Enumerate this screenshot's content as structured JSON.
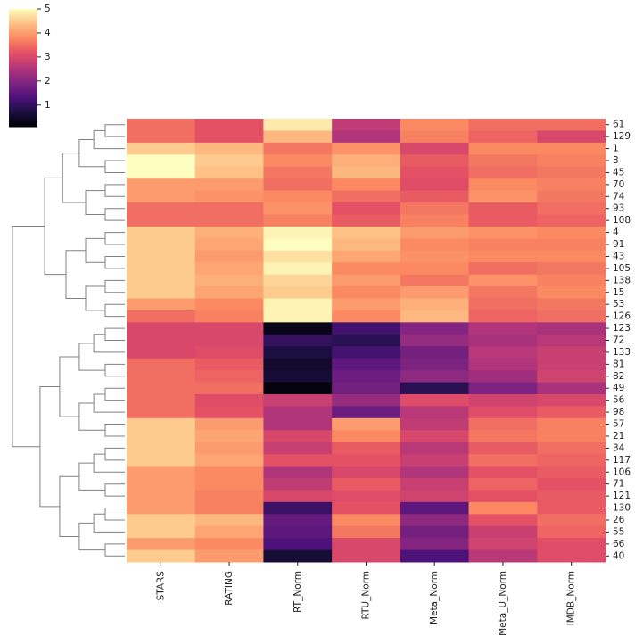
{
  "chart_data": {
    "type": "heatmap",
    "colormap": "magma",
    "columns": [
      "STARS",
      "RATING",
      "RT_Norm",
      "RTU_Norm",
      "Meta_Norm",
      "Meta_U_Norm",
      "IMDB_Norm"
    ],
    "rows": [
      "61",
      "129",
      "1",
      "3",
      "45",
      "70",
      "74",
      "93",
      "108",
      "4",
      "91",
      "43",
      "105",
      "138",
      "15",
      "53",
      "126",
      "123",
      "72",
      "133",
      "81",
      "82",
      "49",
      "56",
      "98",
      "57",
      "21",
      "34",
      "117",
      "106",
      "71",
      "121",
      "130",
      "26",
      "55",
      "66",
      "40"
    ],
    "values": [
      [
        3.5,
        3.2,
        4.8,
        2.7,
        3.8,
        3.5,
        3.5
      ],
      [
        3.5,
        3.2,
        4.3,
        2.5,
        3.7,
        3.4,
        3.0
      ],
      [
        4.5,
        4.3,
        3.6,
        3.9,
        3.0,
        3.8,
        3.8
      ],
      [
        5,
        4.5,
        3.8,
        4.2,
        3.3,
        3.6,
        3.7
      ],
      [
        5,
        4.4,
        3.6,
        4.3,
        3.2,
        3.5,
        3.6
      ],
      [
        4,
        4.0,
        3.5,
        3.8,
        3.1,
        3.8,
        3.7
      ],
      [
        4,
        3.9,
        3.8,
        3.5,
        3.3,
        3.9,
        3.6
      ],
      [
        3.5,
        3.5,
        3.9,
        3.2,
        3.6,
        3.3,
        3.5
      ],
      [
        3.5,
        3.5,
        3.7,
        3.3,
        3.7,
        3.3,
        3.4
      ],
      [
        4.5,
        4.2,
        4.9,
        4.4,
        4.0,
        3.9,
        3.8
      ],
      [
        4.5,
        4.1,
        5.0,
        4.3,
        3.8,
        3.7,
        3.7
      ],
      [
        4.5,
        4.0,
        4.7,
        4.1,
        3.9,
        3.8,
        3.8
      ],
      [
        4.5,
        4.1,
        4.9,
        3.8,
        3.8,
        3.5,
        3.6
      ],
      [
        4.5,
        4.2,
        4.6,
        4.0,
        3.6,
        3.9,
        3.7
      ],
      [
        4.5,
        4.1,
        4.5,
        3.8,
        4.0,
        3.6,
        3.8
      ],
      [
        4,
        3.8,
        4.9,
        4.0,
        4.2,
        3.5,
        3.6
      ],
      [
        3.5,
        3.7,
        4.9,
        3.8,
        4.3,
        3.4,
        3.5
      ],
      [
        3,
        3.0,
        0.3,
        1.2,
        2.0,
        2.5,
        2.4
      ],
      [
        3,
        3.0,
        1.0,
        0.9,
        2.2,
        2.4,
        2.6
      ],
      [
        3,
        3.1,
        0.7,
        1.2,
        1.8,
        2.6,
        2.8
      ],
      [
        3.5,
        3.3,
        0.5,
        1.5,
        1.9,
        2.5,
        2.8
      ],
      [
        3.5,
        3.4,
        0.6,
        1.7,
        2.1,
        2.3,
        2.9
      ],
      [
        3.5,
        3.5,
        0.2,
        1.8,
        0.9,
        1.9,
        2.4
      ],
      [
        3.5,
        3.1,
        2.8,
        2.2,
        3.1,
        2.9,
        3.0
      ],
      [
        3.5,
        3.2,
        2.5,
        1.7,
        2.6,
        3.1,
        3.3
      ],
      [
        4.5,
        4.0,
        2.5,
        4.0,
        2.7,
        3.5,
        3.7
      ],
      [
        4.5,
        4.1,
        3.0,
        3.8,
        3.0,
        3.6,
        3.7
      ],
      [
        4.5,
        4.0,
        2.8,
        3.3,
        2.6,
        3.3,
        3.5
      ],
      [
        4.5,
        4.1,
        3.2,
        3.2,
        2.8,
        3.5,
        3.4
      ],
      [
        4,
        3.8,
        2.5,
        3.0,
        2.5,
        3.2,
        3.3
      ],
      [
        4,
        3.8,
        2.7,
        3.3,
        2.8,
        3.4,
        3.2
      ],
      [
        4,
        3.7,
        3.0,
        3.1,
        2.9,
        3.2,
        3.3
      ],
      [
        4,
        3.7,
        1.1,
        3.2,
        1.5,
        3.8,
        3.3
      ],
      [
        4.5,
        4.3,
        1.6,
        3.8,
        2.1,
        3.2,
        3.5
      ],
      [
        4.5,
        4.1,
        1.5,
        3.6,
        1.8,
        2.8,
        3.4
      ],
      [
        4,
        3.8,
        1.3,
        3.0,
        2.0,
        2.9,
        3.1
      ],
      [
        4.5,
        4.0,
        0.6,
        3.0,
        1.3,
        2.6,
        3.1
      ]
    ],
    "clim": [
      0.1,
      5
    ],
    "colorbar_ticks": [
      1,
      2,
      3,
      4,
      5
    ]
  }
}
